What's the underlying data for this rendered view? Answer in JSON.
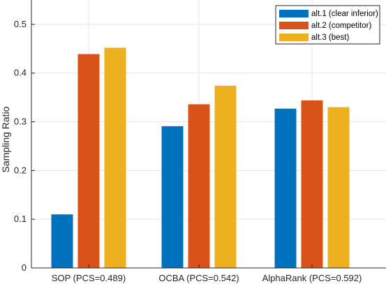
{
  "chart_data": {
    "type": "bar",
    "categories": [
      "SOP (PCS=0.489)",
      "OCBA (PCS=0.542)",
      "AlphaRank (PCS=0.592)"
    ],
    "series": [
      {
        "name": "alt.1 (clear inferior)",
        "color": "#0072BD",
        "values": [
          0.11,
          0.291,
          0.327
        ]
      },
      {
        "name": "alt.2 (competitor)",
        "color": "#D95319",
        "values": [
          0.439,
          0.336,
          0.344
        ]
      },
      {
        "name": "alt.3 (best)",
        "color": "#EDB120",
        "values": [
          0.452,
          0.374,
          0.33
        ]
      }
    ],
    "title": "",
    "xlabel": "",
    "ylabel": "Sampling Ratio",
    "ylim": [
      0,
      0.55
    ],
    "yticks": [
      "0",
      "0.1",
      "0.2",
      "0.3",
      "0.4",
      "0.5"
    ],
    "grid": true,
    "legend_position": "top-right"
  }
}
